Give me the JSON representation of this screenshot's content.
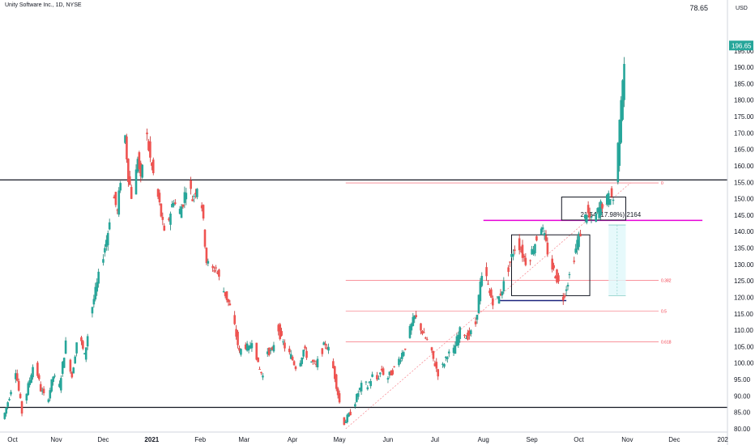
{
  "header": {
    "title": "Unity Software Inc., 1D, NYSE",
    "top_value": "78.65"
  },
  "chart_data": {
    "type": "candlestick",
    "currency": "USD",
    "ylim": [
      79,
      207
    ],
    "y_ticks": [
      80,
      85,
      90,
      95,
      100,
      105,
      110,
      115,
      120,
      125,
      130,
      135,
      140,
      145,
      150,
      155,
      160,
      165,
      170,
      175,
      180,
      185,
      190,
      195
    ],
    "x_ticks": [
      {
        "label": "Oct",
        "day": 5
      },
      {
        "label": "Nov",
        "day": 33
      },
      {
        "label": "Dec",
        "day": 63
      },
      {
        "label": "2021",
        "day": 94
      },
      {
        "label": "Feb",
        "day": 125
      },
      {
        "label": "Mar",
        "day": 153
      },
      {
        "label": "Apr",
        "day": 184
      },
      {
        "label": "May",
        "day": 214
      },
      {
        "label": "Jun",
        "day": 245
      },
      {
        "label": "Jul",
        "day": 275
      },
      {
        "label": "Aug",
        "day": 306
      },
      {
        "label": "Sep",
        "day": 337
      },
      {
        "label": "Oct",
        "day": 367
      },
      {
        "label": "Nov",
        "day": 398
      },
      {
        "label": "Dec",
        "day": 428
      },
      {
        "label": "202",
        "day": 459
      }
    ],
    "x_range_days": [
      -3,
      462
    ],
    "last_price": "196.65",
    "colors": {
      "up": "#26a69a",
      "down": "#ef5350",
      "up_wick": "#1b7f72",
      "down_wick": "#c62828"
    },
    "anchors": [
      {
        "day": 0,
        "price": 83
      },
      {
        "day": 4,
        "price": 90
      },
      {
        "day": 8,
        "price": 98
      },
      {
        "day": 12,
        "price": 85
      },
      {
        "day": 16,
        "price": 93
      },
      {
        "day": 20,
        "price": 101
      },
      {
        "day": 24,
        "price": 92
      },
      {
        "day": 28,
        "price": 88
      },
      {
        "day": 32,
        "price": 96
      },
      {
        "day": 36,
        "price": 93
      },
      {
        "day": 40,
        "price": 106
      },
      {
        "day": 44,
        "price": 96
      },
      {
        "day": 48,
        "price": 110
      },
      {
        "day": 52,
        "price": 102
      },
      {
        "day": 56,
        "price": 115
      },
      {
        "day": 60,
        "price": 124
      },
      {
        "day": 64,
        "price": 133
      },
      {
        "day": 67,
        "price": 140
      },
      {
        "day": 70,
        "price": 152
      },
      {
        "day": 73,
        "price": 146
      },
      {
        "day": 76,
        "price": 161
      },
      {
        "day": 78,
        "price": 169
      },
      {
        "day": 80,
        "price": 157
      },
      {
        "day": 83,
        "price": 148
      },
      {
        "day": 86,
        "price": 163
      },
      {
        "day": 88,
        "price": 155
      },
      {
        "day": 91,
        "price": 172
      },
      {
        "day": 94,
        "price": 162
      },
      {
        "day": 97,
        "price": 155
      },
      {
        "day": 100,
        "price": 148
      },
      {
        "day": 103,
        "price": 139
      },
      {
        "day": 106,
        "price": 144
      },
      {
        "day": 109,
        "price": 150
      },
      {
        "day": 112,
        "price": 145
      },
      {
        "day": 115,
        "price": 149
      },
      {
        "day": 118,
        "price": 156
      },
      {
        "day": 121,
        "price": 150
      },
      {
        "day": 124,
        "price": 154
      },
      {
        "day": 127,
        "price": 148
      },
      {
        "day": 130,
        "price": 131
      },
      {
        "day": 133,
        "price": 128
      },
      {
        "day": 136,
        "price": 129
      },
      {
        "day": 139,
        "price": 124
      },
      {
        "day": 142,
        "price": 121
      },
      {
        "day": 145,
        "price": 117
      },
      {
        "day": 148,
        "price": 111
      },
      {
        "day": 151,
        "price": 103
      },
      {
        "day": 154,
        "price": 106
      },
      {
        "day": 157,
        "price": 104
      },
      {
        "day": 160,
        "price": 109
      },
      {
        "day": 163,
        "price": 99
      },
      {
        "day": 166,
        "price": 96
      },
      {
        "day": 169,
        "price": 104
      },
      {
        "day": 172,
        "price": 103
      },
      {
        "day": 175,
        "price": 112
      },
      {
        "day": 178,
        "price": 107
      },
      {
        "day": 181,
        "price": 104
      },
      {
        "day": 184,
        "price": 102
      },
      {
        "day": 188,
        "price": 98
      },
      {
        "day": 192,
        "price": 104
      },
      {
        "day": 196,
        "price": 101
      },
      {
        "day": 200,
        "price": 99
      },
      {
        "day": 203,
        "price": 103
      },
      {
        "day": 206,
        "price": 106
      },
      {
        "day": 209,
        "price": 103
      },
      {
        "day": 212,
        "price": 96
      },
      {
        "day": 215,
        "price": 88
      },
      {
        "day": 218,
        "price": 82
      },
      {
        "day": 221,
        "price": 84
      },
      {
        "day": 224,
        "price": 87
      },
      {
        "day": 227,
        "price": 91
      },
      {
        "day": 230,
        "price": 94
      },
      {
        "day": 233,
        "price": 93
      },
      {
        "day": 236,
        "price": 96
      },
      {
        "day": 239,
        "price": 95
      },
      {
        "day": 242,
        "price": 98
      },
      {
        "day": 245,
        "price": 95
      },
      {
        "day": 248,
        "price": 97
      },
      {
        "day": 251,
        "price": 99
      },
      {
        "day": 254,
        "price": 102
      },
      {
        "day": 257,
        "price": 105
      },
      {
        "day": 260,
        "price": 110
      },
      {
        "day": 263,
        "price": 114
      },
      {
        "day": 266,
        "price": 112
      },
      {
        "day": 269,
        "price": 108
      },
      {
        "day": 272,
        "price": 106
      },
      {
        "day": 275,
        "price": 101
      },
      {
        "day": 278,
        "price": 97
      },
      {
        "day": 281,
        "price": 99
      },
      {
        "day": 284,
        "price": 103
      },
      {
        "day": 287,
        "price": 102
      },
      {
        "day": 290,
        "price": 107
      },
      {
        "day": 293,
        "price": 111
      },
      {
        "day": 296,
        "price": 108
      },
      {
        "day": 299,
        "price": 109
      },
      {
        "day": 302,
        "price": 112
      },
      {
        "day": 305,
        "price": 124
      },
      {
        "day": 308,
        "price": 128
      },
      {
        "day": 311,
        "price": 121
      },
      {
        "day": 314,
        "price": 118
      },
      {
        "day": 317,
        "price": 120
      },
      {
        "day": 320,
        "price": 124
      },
      {
        "day": 323,
        "price": 129
      },
      {
        "day": 326,
        "price": 134
      },
      {
        "day": 329,
        "price": 137
      },
      {
        "day": 332,
        "price": 133
      },
      {
        "day": 335,
        "price": 130
      },
      {
        "day": 338,
        "price": 134
      },
      {
        "day": 341,
        "price": 138
      },
      {
        "day": 344,
        "price": 142
      },
      {
        "day": 347,
        "price": 136
      },
      {
        "day": 350,
        "price": 130
      },
      {
        "day": 353,
        "price": 127
      },
      {
        "day": 356,
        "price": 123
      },
      {
        "day": 358,
        "price": 120
      },
      {
        "day": 361,
        "price": 125
      },
      {
        "day": 364,
        "price": 130
      },
      {
        "day": 367,
        "price": 137
      },
      {
        "day": 370,
        "price": 141
      },
      {
        "day": 373,
        "price": 146
      },
      {
        "day": 376,
        "price": 143
      },
      {
        "day": 379,
        "price": 145
      },
      {
        "day": 382,
        "price": 148
      },
      {
        "day": 385,
        "price": 149
      },
      {
        "day": 388,
        "price": 151
      },
      {
        "day": 390,
        "price": 150
      },
      {
        "day": 392,
        "price": 160
      },
      {
        "day": 394,
        "price": 174
      },
      {
        "day": 396,
        "price": 186
      },
      {
        "day": 398,
        "price": 196
      }
    ],
    "horizontal_lines": [
      {
        "price": 155.7,
        "color": "#131722",
        "label": ""
      },
      {
        "price": 86.5,
        "color": "#131722",
        "label": ""
      },
      {
        "price": 143.4,
        "color": "#e600d7",
        "label": ""
      }
    ],
    "fib_levels": [
      {
        "price": 154.8,
        "label": "0"
      },
      {
        "price": 125.1,
        "label": "0.382"
      },
      {
        "price": 115.8,
        "label": "0.5"
      },
      {
        "price": 106.5,
        "label": "0.618"
      }
    ],
    "measure_label": "21.54 (17.98%) 2164"
  }
}
